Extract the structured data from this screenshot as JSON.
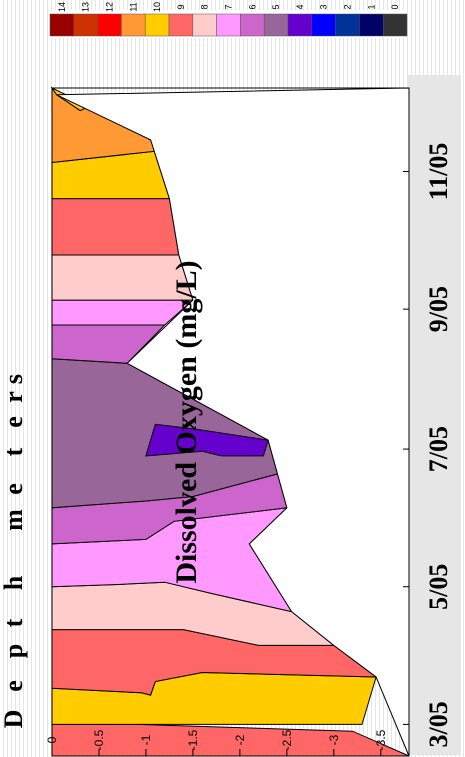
{
  "chart_data": {
    "type": "area",
    "title": "Dissolved Oxygen (mg/L)",
    "xlabel": "",
    "ylabel": "D e p t h   m e t e r s",
    "ylabel_letters": [
      "D",
      "e",
      "p",
      "t",
      "h",
      "m",
      "e",
      "t",
      "e",
      "r",
      "s"
    ],
    "x_ticks": [
      "3/05",
      "5/05",
      "7/05",
      "9/05",
      "11/05"
    ],
    "y_ticks": [
      "0",
      "-0.5",
      "-1",
      "-1.5",
      "-2",
      "-2.5",
      "-3",
      "-3.5"
    ],
    "ylim": [
      -3.8,
      0
    ],
    "colorbar": {
      "labels": [
        "14",
        "13",
        "12",
        "11",
        "10",
        "9",
        "8",
        "7",
        "6",
        "5",
        "4",
        "3",
        "2",
        "1",
        "0"
      ],
      "colors": [
        "#990000",
        "#cc3300",
        "#ff0000",
        "#ff9933",
        "#ffcc00",
        "#ff6666",
        "#ffcccc",
        "#ff99ff",
        "#cc66cc",
        "#996699",
        "#6600cc",
        "#0000ff",
        "#003399",
        "#000066",
        "#333333"
      ]
    },
    "profile_bottom": [
      {
        "date": "2005-02-15",
        "depth": -3.8
      },
      {
        "date": "2005-03-22",
        "depth": -3.45
      },
      {
        "date": "2005-04-05",
        "depth": -3.0
      },
      {
        "date": "2005-04-20",
        "depth": -2.55
      },
      {
        "date": "2005-05-20",
        "depth": -2.1
      },
      {
        "date": "2005-06-05",
        "depth": -2.5
      },
      {
        "date": "2005-07-05",
        "depth": -2.3
      },
      {
        "date": "2005-08-08",
        "depth": -0.8
      },
      {
        "date": "2005-09-05",
        "depth": -1.5
      },
      {
        "date": "2005-09-25",
        "depth": -1.35
      },
      {
        "date": "2005-10-20",
        "depth": -1.25
      },
      {
        "date": "2005-11-15",
        "depth": -1.05
      },
      {
        "date": "2005-12-05",
        "depth": -0.05
      }
    ],
    "regions": [
      {
        "fill": "#ff6666",
        "points": [
          [
            "2005-02-15",
            0
          ],
          [
            "2005-03-01",
            0
          ],
          [
            "2005-03-01",
            -0.9
          ],
          [
            "2005-02-26",
            -3.2
          ],
          [
            "2005-02-15",
            -3.8
          ]
        ]
      },
      {
        "fill": "#ffcc00",
        "points": [
          [
            "2005-03-01",
            0
          ],
          [
            "2005-03-17",
            0
          ],
          [
            "2005-03-15",
            -0.95
          ],
          [
            "2005-03-14",
            -1.05
          ],
          [
            "2005-03-20",
            -1.1
          ],
          [
            "2005-03-24",
            -1.6
          ],
          [
            "2005-03-22",
            -3.45
          ],
          [
            "2005-03-01",
            -3.3
          ],
          [
            "2005-03-01",
            -0.9
          ]
        ]
      },
      {
        "fill": "#ff6666",
        "points": [
          [
            "2005-03-17",
            0
          ],
          [
            "2005-04-12",
            0
          ],
          [
            "2005-04-12",
            -1.4
          ],
          [
            "2005-04-05",
            -2.2
          ],
          [
            "2005-04-05",
            -3.0
          ],
          [
            "2005-03-22",
            -3.45
          ],
          [
            "2005-03-24",
            -1.6
          ],
          [
            "2005-03-20",
            -1.1
          ],
          [
            "2005-03-14",
            -1.05
          ],
          [
            "2005-03-15",
            -0.95
          ]
        ]
      },
      {
        "fill": "#ffcccc",
        "points": [
          [
            "2005-04-12",
            0
          ],
          [
            "2005-05-01",
            0
          ],
          [
            "2005-05-02",
            -0.7
          ],
          [
            "2005-05-03",
            -1.2
          ],
          [
            "2005-04-28",
            -1.7
          ],
          [
            "2005-04-20",
            -2.55
          ],
          [
            "2005-04-05",
            -3.0
          ],
          [
            "2005-04-05",
            -2.2
          ],
          [
            "2005-04-12",
            -1.4
          ]
        ]
      },
      {
        "fill": "#ff99ff",
        "points": [
          [
            "2005-05-01",
            0
          ],
          [
            "2005-05-20",
            0
          ],
          [
            "2005-05-22",
            -1.0
          ],
          [
            "2005-05-30",
            -1.3
          ],
          [
            "2005-06-05",
            -2.5
          ],
          [
            "2005-05-20",
            -2.1
          ],
          [
            "2005-04-20",
            -2.55
          ],
          [
            "2005-04-28",
            -1.7
          ],
          [
            "2005-05-03",
            -1.2
          ],
          [
            "2005-05-02",
            -0.7
          ]
        ]
      },
      {
        "fill": "#cc66cc",
        "points": [
          [
            "2005-05-20",
            0
          ],
          [
            "2005-06-05",
            0
          ],
          [
            "2005-06-08",
            -1.0
          ],
          [
            "2005-06-10",
            -1.5
          ],
          [
            "2005-06-20",
            -2.4
          ],
          [
            "2005-06-05",
            -2.5
          ],
          [
            "2005-05-30",
            -1.3
          ],
          [
            "2005-05-22",
            -1.0
          ]
        ]
      },
      {
        "fill": "#996699",
        "points": [
          [
            "2005-06-05",
            0
          ],
          [
            "2005-08-10",
            0
          ],
          [
            "2005-08-08",
            -0.8
          ],
          [
            "2005-07-05",
            -2.3
          ],
          [
            "2005-06-20",
            -2.4
          ],
          [
            "2005-06-10",
            -1.5
          ],
          [
            "2005-06-08",
            -1.0
          ]
        ]
      },
      {
        "fill": "#6600cc",
        "points": [
          [
            "2005-06-28",
            -1.0
          ],
          [
            "2005-07-12",
            -1.1
          ],
          [
            "2005-07-10",
            -1.5
          ],
          [
            "2005-07-05",
            -2.3
          ],
          [
            "2005-06-28",
            -2.25
          ],
          [
            "2005-06-28",
            -1.8
          ],
          [
            "2005-06-30",
            -1.6
          ]
        ]
      },
      {
        "fill": "#cc66cc",
        "points": [
          [
            "2005-08-10",
            0
          ],
          [
            "2005-08-25",
            0
          ],
          [
            "2005-08-25",
            -1.2
          ],
          [
            "2005-08-08",
            -0.8
          ]
        ]
      },
      {
        "fill": "#ff99ff",
        "points": [
          [
            "2005-08-25",
            0
          ],
          [
            "2005-09-05",
            0
          ],
          [
            "2005-09-05",
            -1.5
          ],
          [
            "2005-08-25",
            -1.2
          ]
        ]
      },
      {
        "fill": "#ffcccc",
        "points": [
          [
            "2005-09-05",
            0
          ],
          [
            "2005-09-25",
            0
          ],
          [
            "2005-09-25",
            -1.35
          ],
          [
            "2005-09-05",
            -1.5
          ]
        ]
      },
      {
        "fill": "#ff6666",
        "points": [
          [
            "2005-09-25",
            0
          ],
          [
            "2005-10-20",
            0
          ],
          [
            "2005-10-20",
            -1.25
          ],
          [
            "2005-09-25",
            -1.35
          ]
        ]
      },
      {
        "fill": "#ffcc00",
        "points": [
          [
            "2005-10-20",
            0
          ],
          [
            "2005-11-05",
            0
          ],
          [
            "2005-11-10",
            -1.1
          ],
          [
            "2005-11-15",
            -1.05
          ],
          [
            "2005-10-20",
            -1.25
          ]
        ]
      },
      {
        "fill": "#ff9933",
        "points": [
          [
            "2005-11-05",
            0
          ],
          [
            "2005-12-08",
            0
          ],
          [
            "2005-12-05",
            -0.05
          ],
          [
            "2005-11-28",
            -0.3
          ],
          [
            "2005-11-30",
            -0.4
          ],
          [
            "2005-11-15",
            -1.05
          ],
          [
            "2005-11-10",
            -1.1
          ]
        ]
      },
      {
        "fill": "#ffcc00",
        "points": [
          [
            "2005-12-08",
            0
          ],
          [
            "2005-12-05",
            -0.05
          ],
          [
            "2005-11-28",
            -0.3
          ],
          [
            "2005-11-30",
            -0.4
          ]
        ]
      }
    ]
  }
}
